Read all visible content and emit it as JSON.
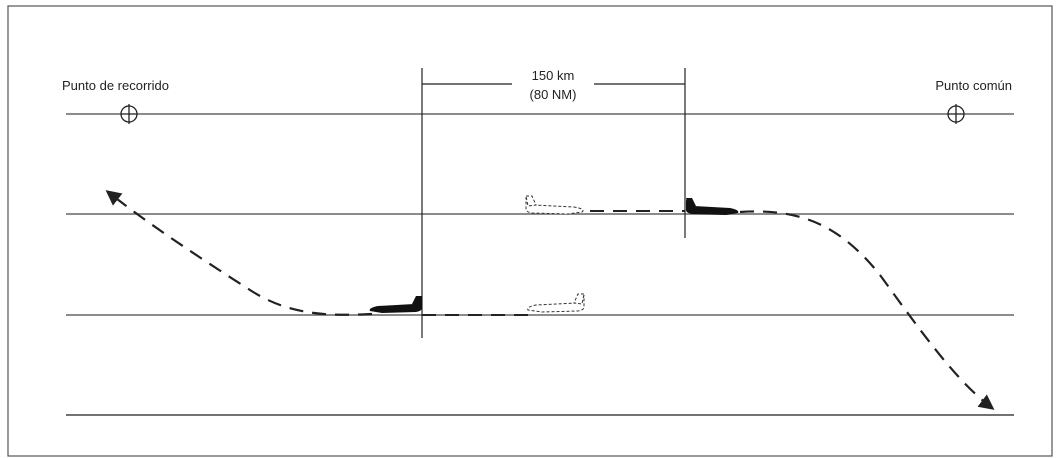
{
  "labels": {
    "waypoint": "Punto de recorrido",
    "common_point": "Punto común",
    "distance_km": "150 km",
    "distance_nm": "(80 NM)"
  }
}
